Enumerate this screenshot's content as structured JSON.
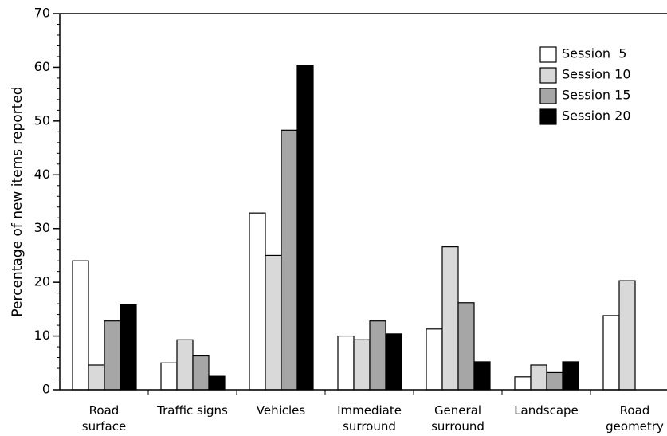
{
  "chart_data": {
    "type": "bar",
    "y_label": "Percentage of new items reported",
    "categories": [
      "Road\nsurface",
      "Traffic signs",
      "Vehicles",
      "Immediate\nsurround",
      "General\nsurround",
      "Landscape",
      "Road\ngeometry"
    ],
    "series": [
      {
        "name": "Session  5",
        "color": "#ffffff",
        "values": [
          24,
          5,
          32.9,
          10,
          11.3,
          2.4,
          13.8
        ]
      },
      {
        "name": "Session 10",
        "color": "#d9d9d9",
        "values": [
          4.6,
          9.3,
          25,
          9.3,
          26.6,
          4.6,
          20.3
        ]
      },
      {
        "name": "Session 15",
        "color": "#a6a6a6",
        "values": [
          12.8,
          6.3,
          48.3,
          12.8,
          16.2,
          3.2,
          null
        ]
      },
      {
        "name": "Session 20",
        "color": "#000000",
        "values": [
          15.8,
          2.5,
          60.4,
          10.4,
          5.2,
          5.2,
          null
        ]
      }
    ],
    "ylim": [
      0,
      70
    ],
    "yticks": [
      0,
      10,
      20,
      30,
      40,
      50,
      60,
      70
    ],
    "yminor_step": 2,
    "legend": "upper-right"
  }
}
